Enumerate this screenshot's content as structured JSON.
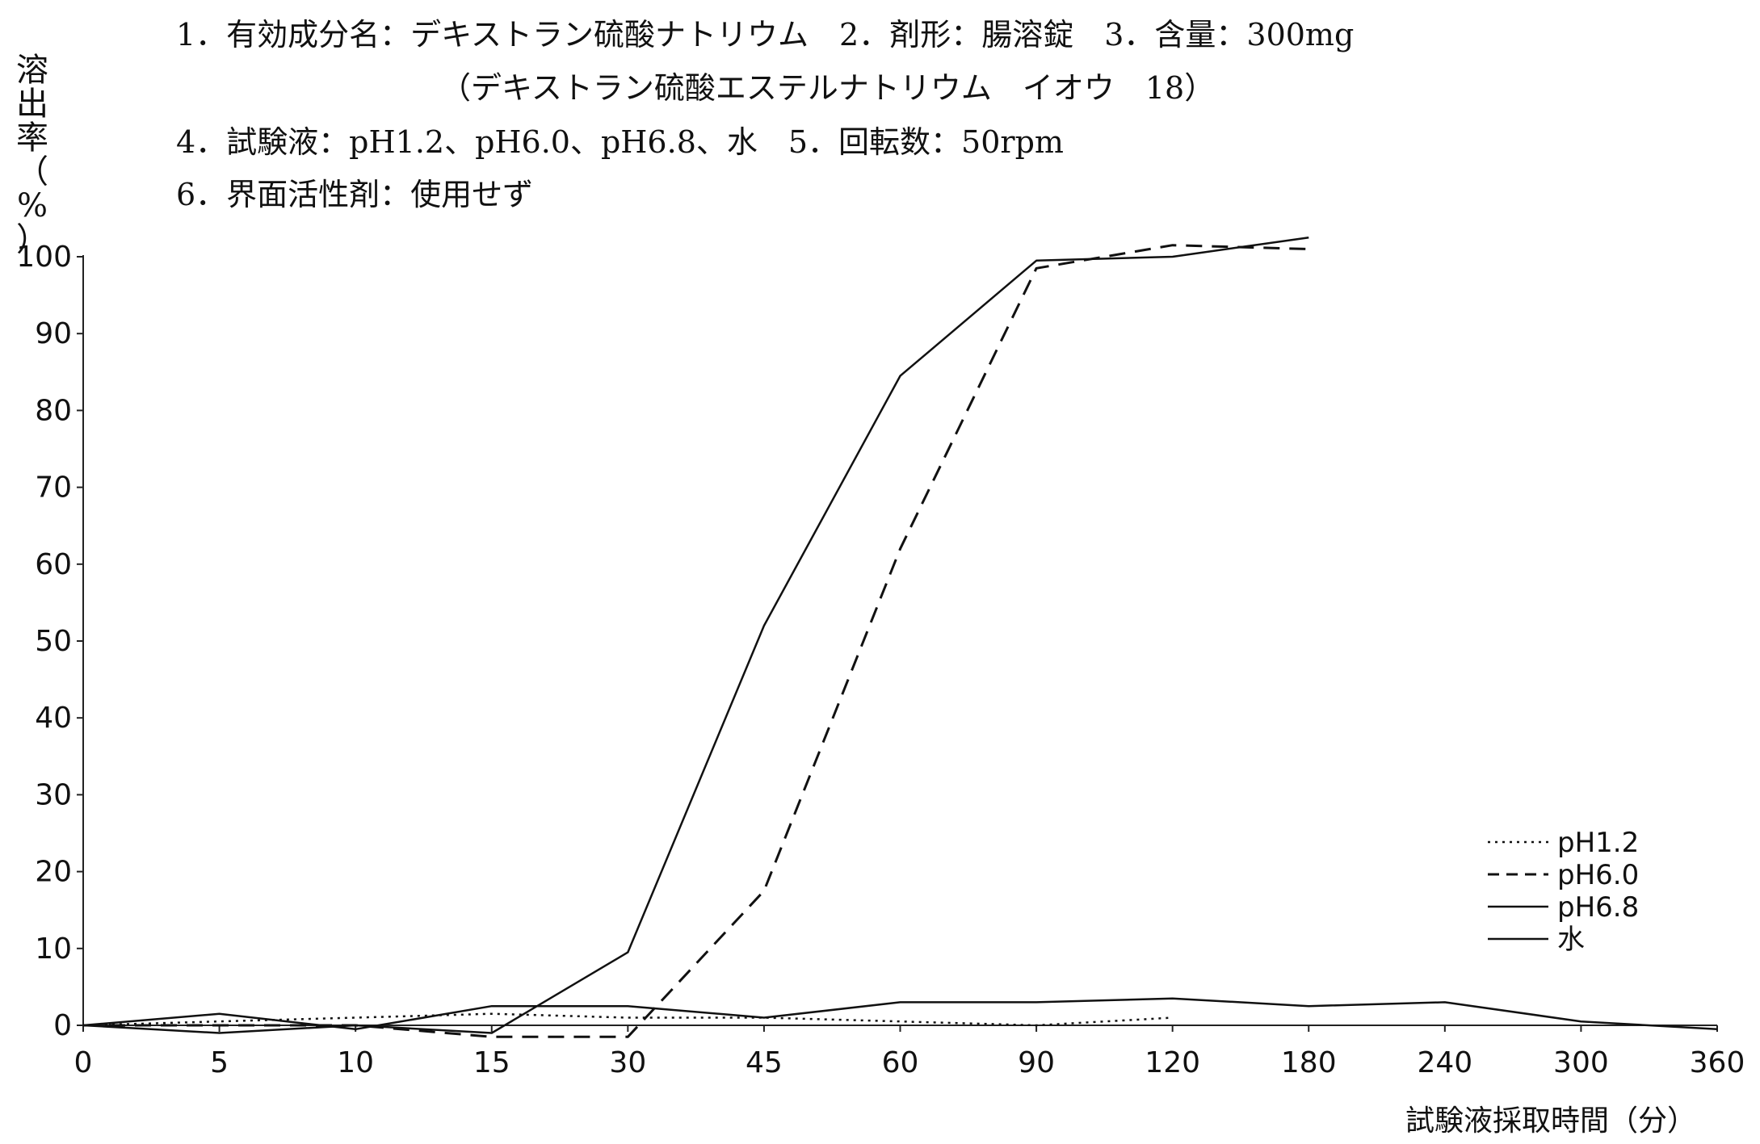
{
  "header": {
    "line1": "1．有効成分名：デキストラン硫酸ナトリウム　2．剤形：腸溶錠　3．含量：300mg",
    "line2": "（デキストラン硫酸エステルナトリウム　イオウ　18）",
    "line3": "4．試験液：pH1.2、pH6.0、pH6.8、水　5．回転数：50rpm",
    "line4": "6．界面活性剤：使用せず"
  },
  "chart_data": {
    "type": "line",
    "ylabel": "溶出率（%）",
    "xlabel": "試験液採取時間（分）",
    "categories": [
      "0",
      "5",
      "10",
      "15",
      "30",
      "45",
      "60",
      "90",
      "120",
      "180",
      "240",
      "300",
      "360"
    ],
    "yticks": [
      "0",
      "10",
      "20",
      "30",
      "40",
      "50",
      "60",
      "70",
      "80",
      "90",
      "100"
    ],
    "ylim": [
      0,
      100
    ],
    "grid": false,
    "legend_position": "lower-right",
    "series": [
      {
        "name": "pH1.2",
        "style": "dotted",
        "values": [
          0,
          0.5,
          1,
          1.5,
          1,
          1,
          0.5,
          0,
          1,
          null,
          null,
          null,
          null
        ]
      },
      {
        "name": "pH6.0",
        "style": "dashed",
        "values": [
          0,
          0,
          0,
          -1.5,
          -1.5,
          17.5,
          62,
          98.5,
          101.5,
          101,
          null,
          null,
          null
        ]
      },
      {
        "name": "pH6.8",
        "style": "solid",
        "values": [
          0,
          -1,
          0,
          -1,
          9.5,
          52,
          84.5,
          99.5,
          100,
          102.5,
          null,
          null,
          null
        ]
      },
      {
        "name": "水",
        "style": "solid",
        "values": [
          0,
          1.5,
          -0.5,
          2.5,
          2.5,
          1,
          3,
          3,
          3.5,
          2.5,
          3,
          0.5,
          -0.5
        ]
      }
    ]
  }
}
